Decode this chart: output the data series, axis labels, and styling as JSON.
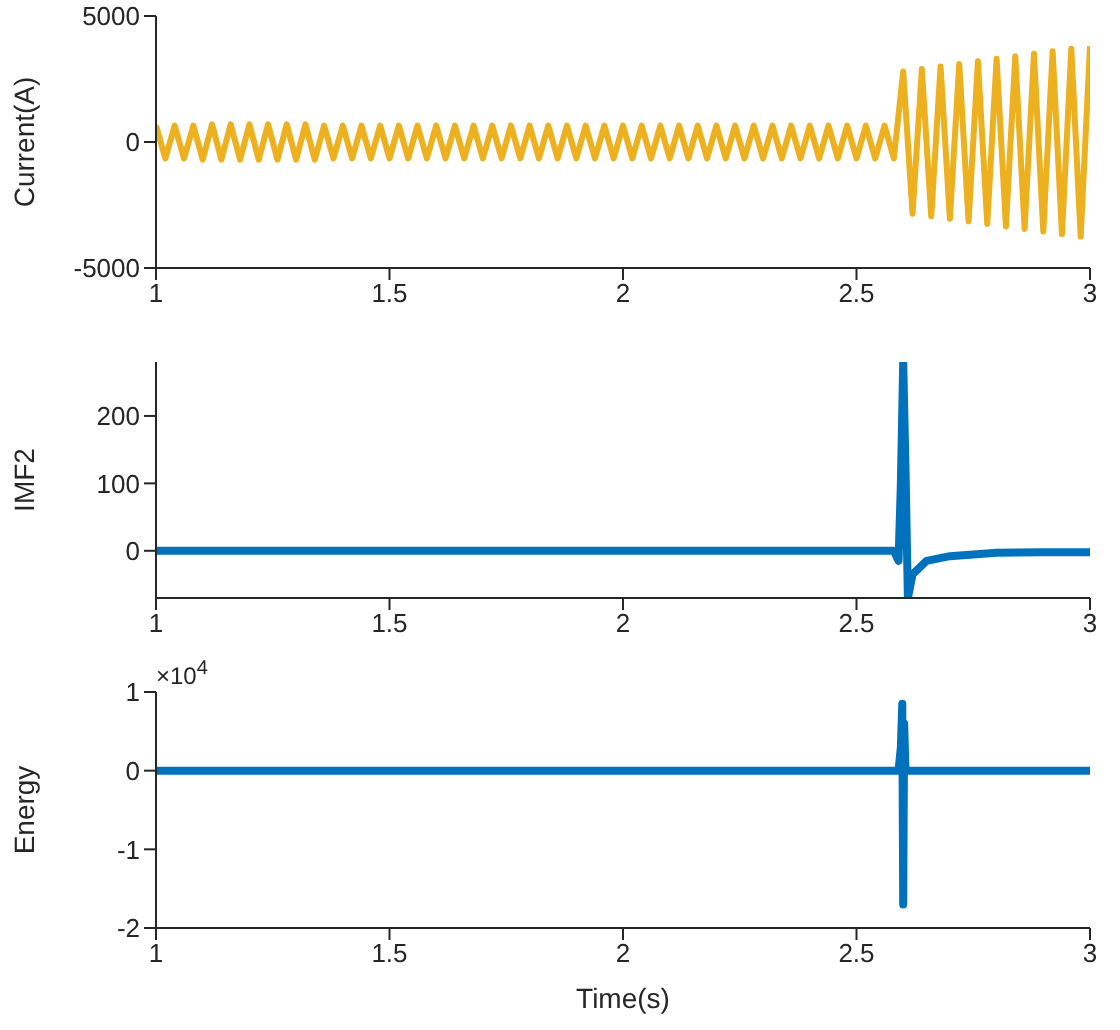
{
  "chart_data": [
    {
      "type": "line",
      "ylabel": "Current(A)",
      "xlim": [
        1,
        3
      ],
      "xticks": [
        1,
        1.5,
        2,
        2.5,
        3
      ],
      "ylim": [
        -5000,
        5000
      ],
      "yticks": [
        -5000,
        0,
        5000
      ],
      "series": [
        {
          "color": "#edb120",
          "x": [
            1,
            1.02,
            1.04,
            1.06,
            1.08,
            1.1,
            1.12,
            1.14,
            1.16,
            1.18,
            1.2,
            1.22,
            1.24,
            1.26,
            1.28,
            1.3,
            1.32,
            1.34,
            1.36,
            1.38,
            1.4,
            1.42,
            1.44,
            1.46,
            1.48,
            1.5,
            1.52,
            1.54,
            1.56,
            1.58,
            1.6,
            1.62,
            1.64,
            1.66,
            1.68,
            1.7,
            1.72,
            1.74,
            1.76,
            1.78,
            1.8,
            1.82,
            1.84,
            1.86,
            1.88,
            1.9,
            1.92,
            1.94,
            1.96,
            1.98,
            2,
            2.02,
            2.04,
            2.06,
            2.08,
            2.1,
            2.12,
            2.14,
            2.16,
            2.18,
            2.2,
            2.22,
            2.24,
            2.26,
            2.28,
            2.3,
            2.32,
            2.34,
            2.36,
            2.38,
            2.4,
            2.42,
            2.44,
            2.46,
            2.48,
            2.5,
            2.52,
            2.54,
            2.56,
            2.58,
            2.6,
            2.62,
            2.64,
            2.66,
            2.68,
            2.7,
            2.72,
            2.74,
            2.76,
            2.78,
            2.8,
            2.82,
            2.84,
            2.86,
            2.88,
            2.9,
            2.92,
            2.94,
            2.96,
            2.98,
            3
          ],
          "values": [
            650,
            -650,
            650,
            -650,
            650,
            -700,
            700,
            -700,
            700,
            -700,
            700,
            -700,
            700,
            -700,
            700,
            -700,
            700,
            -700,
            650,
            -650,
            650,
            -650,
            650,
            -650,
            650,
            -650,
            650,
            -650,
            650,
            -650,
            650,
            -650,
            650,
            -650,
            650,
            -650,
            650,
            -650,
            650,
            -650,
            650,
            -650,
            650,
            -650,
            650,
            -650,
            650,
            -650,
            650,
            -650,
            650,
            -650,
            650,
            -650,
            650,
            -650,
            650,
            -650,
            650,
            -650,
            650,
            -650,
            650,
            -650,
            650,
            -650,
            650,
            -650,
            650,
            -650,
            650,
            -650,
            650,
            -650,
            650,
            -650,
            650,
            -650,
            650,
            -650,
            2800,
            -2850,
            2900,
            -2950,
            3000,
            -3050,
            3100,
            -3150,
            3200,
            -3250,
            3300,
            -3350,
            3400,
            -3450,
            3500,
            -3550,
            3600,
            -3650,
            3700,
            -3750,
            3800
          ]
        }
      ]
    },
    {
      "type": "line",
      "ylabel": "IMF2",
      "xlim": [
        1,
        3
      ],
      "xticks": [
        1,
        1.5,
        2,
        2.5,
        3
      ],
      "ylim": [
        -70,
        280
      ],
      "yticks": [
        0,
        100,
        200
      ],
      "series": [
        {
          "color": "#0072bd",
          "x": [
            1,
            1.5,
            2,
            2.5,
            2.58,
            2.59,
            2.595,
            2.6,
            2.605,
            2.61,
            2.62,
            2.65,
            2.7,
            2.8,
            2.9,
            3
          ],
          "values": [
            0,
            0,
            0,
            0,
            0,
            -15,
            100,
            280,
            120,
            -70,
            -35,
            -15,
            -8,
            -3,
            -2,
            -2
          ]
        }
      ]
    },
    {
      "type": "line",
      "ylabel": "Energy",
      "xlabel": "Time(s)",
      "annotations": [
        "×10$^{4}$"
      ],
      "xlim": [
        1,
        3
      ],
      "xticks": [
        1,
        1.5,
        2,
        2.5,
        3
      ],
      "ylim": [
        -2,
        1
      ],
      "yticks": [
        -2,
        -1,
        0,
        1
      ],
      "series": [
        {
          "color": "#0072bd",
          "x": [
            1,
            2.5,
            2.59,
            2.595,
            2.598,
            2.6,
            2.602,
            2.605,
            2.61,
            3
          ],
          "values": [
            0,
            0,
            0,
            0.3,
            0.85,
            -1.7,
            0.6,
            0,
            0,
            0
          ]
        }
      ]
    }
  ]
}
